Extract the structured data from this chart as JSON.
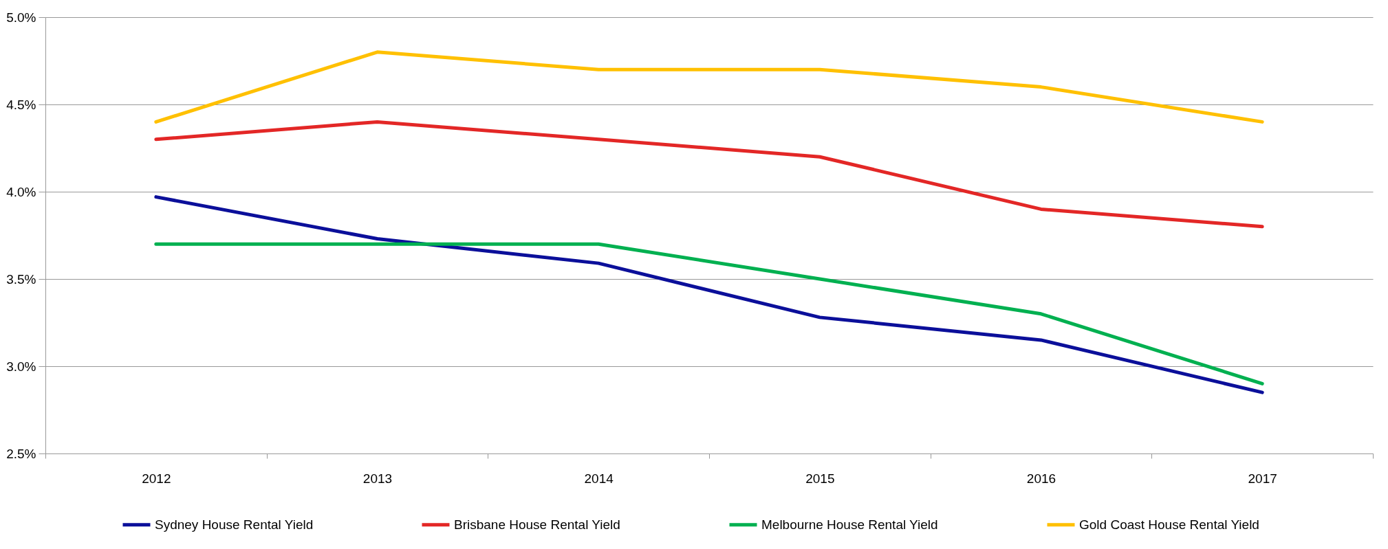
{
  "chart_data": {
    "type": "line",
    "categories": [
      "2012",
      "2013",
      "2014",
      "2015",
      "2016",
      "2017"
    ],
    "series": [
      {
        "name": "Sydney House Rental Yield",
        "color": "#0b0f9a",
        "values": [
          3.97,
          3.73,
          3.59,
          3.28,
          3.15,
          2.85
        ]
      },
      {
        "name": "Brisbane House Rental Yield",
        "color": "#e32726",
        "values": [
          4.3,
          4.4,
          4.3,
          4.2,
          3.9,
          3.8
        ]
      },
      {
        "name": "Melbourne House Rental Yield",
        "color": "#00b050",
        "values": [
          3.7,
          3.7,
          3.7,
          3.5,
          3.3,
          2.9
        ]
      },
      {
        "name": "Gold Coast House Rental Yield",
        "color": "#ffc000",
        "values": [
          4.4,
          4.8,
          4.7,
          4.7,
          4.6,
          4.4
        ]
      }
    ],
    "ylim": [
      2.5,
      5.0
    ],
    "yticks": [
      {
        "value": 2.5,
        "label": "2.5%"
      },
      {
        "value": 3.0,
        "label": "3.0%"
      },
      {
        "value": 3.5,
        "label": "3.5%"
      },
      {
        "value": 4.0,
        "label": "4.0%"
      },
      {
        "value": 4.5,
        "label": "4.5%"
      },
      {
        "value": 5.0,
        "label": "5.0%"
      }
    ],
    "grid": "y",
    "legend": "bottom",
    "marker": "none",
    "line_style": "solid"
  }
}
